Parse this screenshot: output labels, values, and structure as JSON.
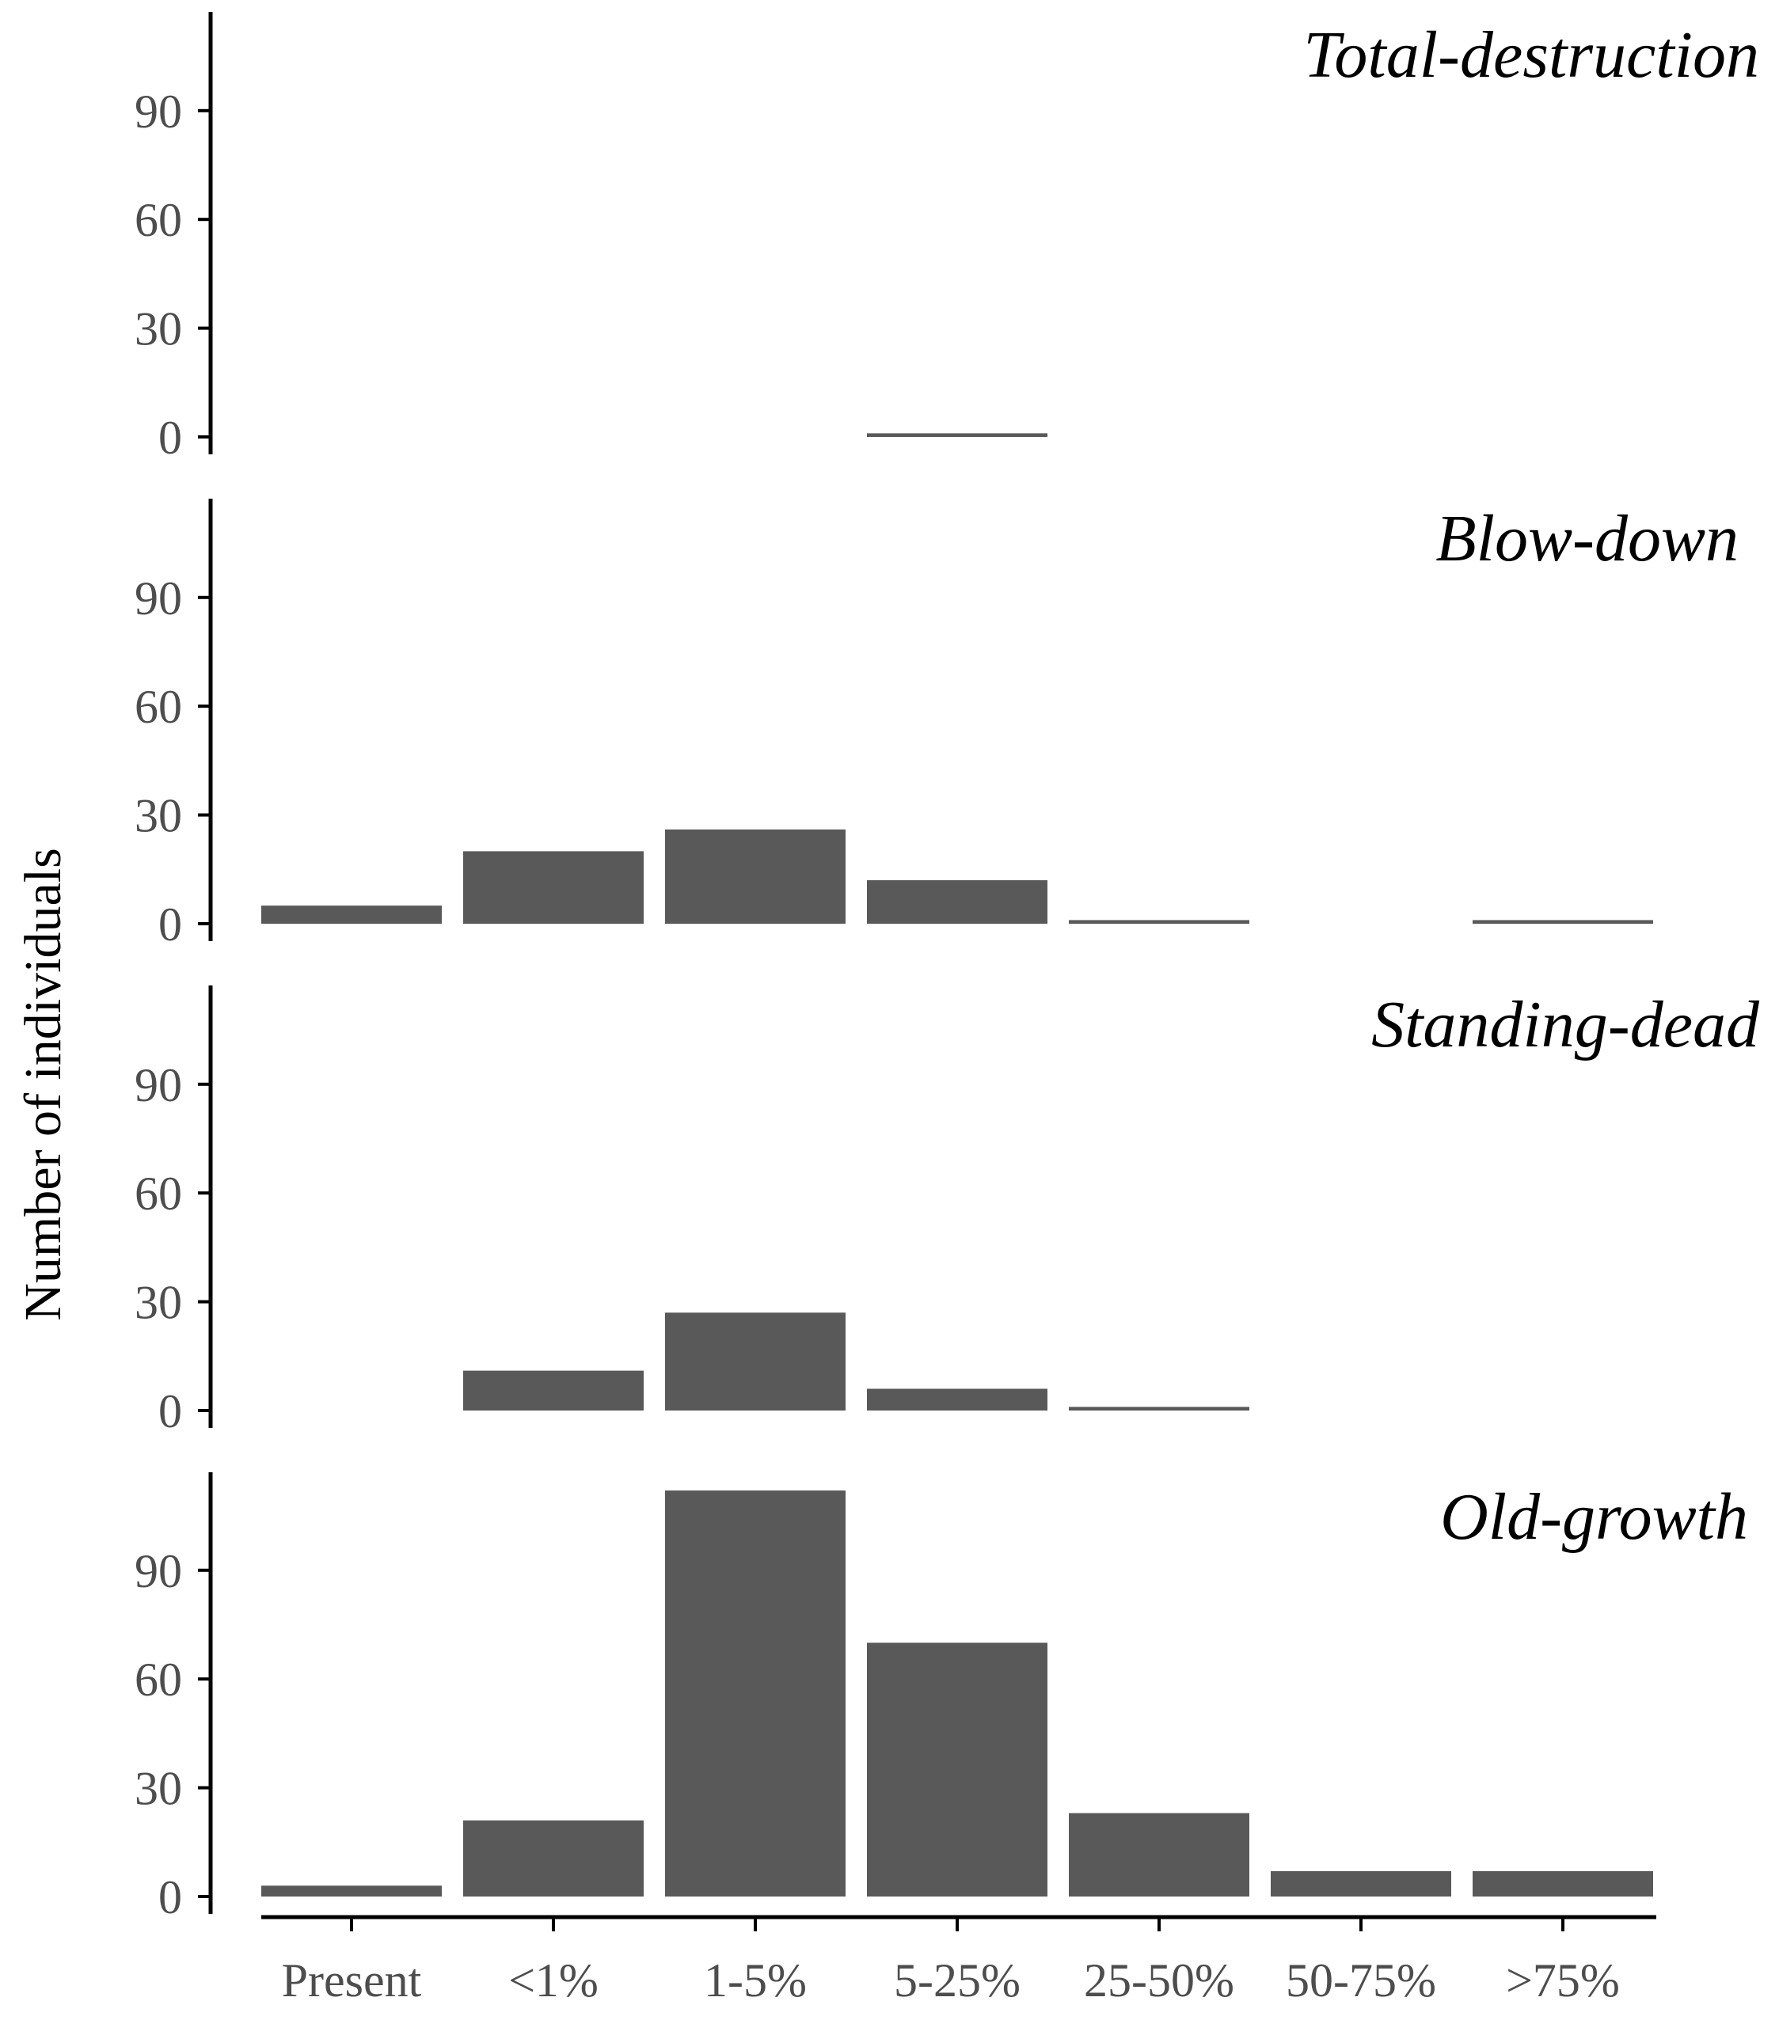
{
  "chart_data": {
    "type": "bar",
    "ylabel": "Number of individuals",
    "xlabel": "",
    "categories": [
      "Present",
      "<1%",
      "1-5%",
      "5-25%",
      "25-50%",
      "50-75%",
      ">75%"
    ],
    "ylim": [
      0,
      115
    ],
    "yticks": [
      0,
      30,
      60,
      90
    ],
    "colors": {
      "bar": "#595959",
      "axis": "#000000",
      "tick_label": "#4d4d4d"
    },
    "panels": [
      {
        "title": "Total-destruction",
        "values": [
          0,
          0,
          0,
          1,
          0,
          0,
          0
        ]
      },
      {
        "title": "Blow-down",
        "values": [
          5,
          20,
          26,
          12,
          1,
          0,
          1
        ]
      },
      {
        "title": "Standing-dead",
        "values": [
          0,
          11,
          27,
          6,
          1,
          0,
          0
        ]
      },
      {
        "title": "Old-growth",
        "values": [
          3,
          21,
          112,
          70,
          23,
          7,
          7
        ]
      }
    ]
  }
}
